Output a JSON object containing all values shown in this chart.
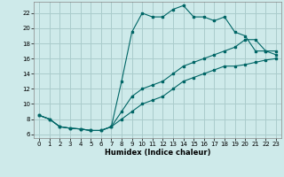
{
  "xlabel": "Humidex (Indice chaleur)",
  "bg_color": "#ceeaea",
  "grid_color": "#aacccc",
  "line_color": "#006666",
  "xlim": [
    -0.5,
    23.5
  ],
  "ylim": [
    5.5,
    23.5
  ],
  "xticks": [
    0,
    1,
    2,
    3,
    4,
    5,
    6,
    7,
    8,
    9,
    10,
    11,
    12,
    13,
    14,
    15,
    16,
    17,
    18,
    19,
    20,
    21,
    22,
    23
  ],
  "yticks": [
    6,
    8,
    10,
    12,
    14,
    16,
    18,
    20,
    22
  ],
  "line1_x": [
    0,
    1,
    2,
    3,
    4,
    5,
    6,
    7,
    8,
    9,
    10,
    11,
    12,
    13,
    14,
    15,
    16,
    17,
    18,
    19,
    20,
    21,
    22,
    23
  ],
  "line1_y": [
    8.5,
    8.0,
    7.0,
    6.8,
    6.7,
    6.5,
    6.5,
    7.0,
    13.0,
    19.5,
    22.0,
    21.5,
    21.5,
    22.5,
    23.0,
    21.5,
    21.5,
    21.0,
    21.5,
    19.5,
    19.0,
    17.0,
    17.0,
    16.5
  ],
  "line2_x": [
    0,
    1,
    2,
    3,
    4,
    5,
    6,
    7,
    8,
    9,
    10,
    11,
    12,
    13,
    14,
    15,
    16,
    17,
    18,
    19,
    20,
    21,
    22,
    23
  ],
  "line2_y": [
    8.5,
    8.0,
    7.0,
    6.8,
    6.7,
    6.5,
    6.5,
    7.0,
    8.0,
    9.0,
    10.0,
    10.5,
    11.0,
    12.0,
    13.0,
    13.5,
    14.0,
    14.5,
    15.0,
    15.0,
    15.2,
    15.5,
    15.8,
    16.0
  ],
  "line3_x": [
    0,
    1,
    2,
    3,
    4,
    5,
    6,
    7,
    8,
    9,
    10,
    11,
    12,
    13,
    14,
    15,
    16,
    17,
    18,
    19,
    20,
    21,
    22,
    23
  ],
  "line3_y": [
    8.5,
    8.0,
    7.0,
    6.8,
    6.7,
    6.5,
    6.5,
    7.0,
    9.0,
    11.0,
    12.0,
    12.5,
    13.0,
    14.0,
    15.0,
    15.5,
    16.0,
    16.5,
    17.0,
    17.5,
    18.5,
    18.5,
    17.0,
    17.0
  ]
}
